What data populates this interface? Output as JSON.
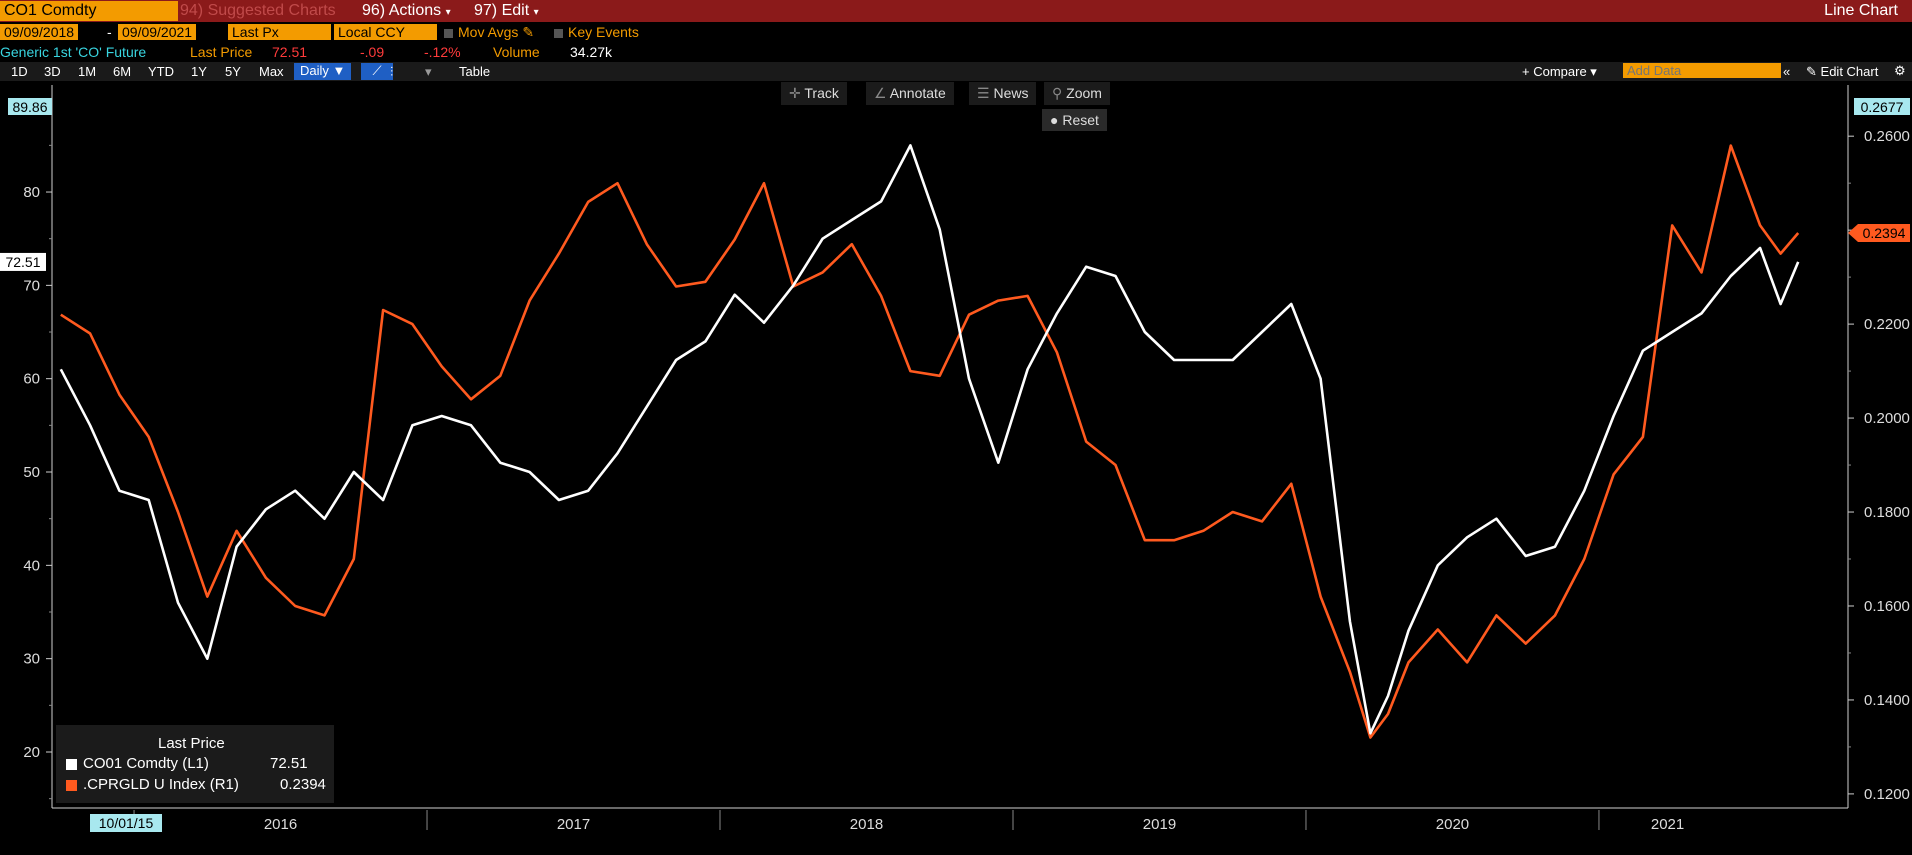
{
  "top_bar": {
    "ticker": "CO1 Comdty",
    "suggested": "94) Suggested Charts",
    "actions": "96) Actions",
    "edit": "97) Edit",
    "chart_type": "Line Chart"
  },
  "second_bar": {
    "start_date": "09/09/2018",
    "end_date": "09/09/2021",
    "field": "Last Px",
    "currency": "Local CCY",
    "mov_avgs": "Mov Avgs",
    "key_events": "Key Events"
  },
  "info_bar": {
    "security": "Generic 1st 'CO' Future",
    "last_price_label": "Last Price",
    "last_price": "72.51",
    "change": "-.09",
    "pct_change": "-.12%",
    "volume_label": "Volume",
    "volume": "34.27k"
  },
  "range_bar": {
    "buttons": [
      "1D",
      "3D",
      "1M",
      "6M",
      "YTD",
      "1Y",
      "5Y",
      "Max"
    ],
    "frequency": "Daily",
    "table": "Table",
    "compare": "+ Compare",
    "add_data_placeholder": "Add Data",
    "edit_chart": "Edit Chart"
  },
  "chart_tools": {
    "track": "Track",
    "annotate": "Annotate",
    "news": "News",
    "zoom": "Zoom",
    "reset": "Reset"
  },
  "colors": {
    "series1": "#ffffff",
    "series2": "#ff5a1f",
    "accent": "#f39b00",
    "topbar": "#8b1a1a"
  },
  "chart_data": {
    "type": "line",
    "x_labels": [
      "10/01/15",
      "2016",
      "2017",
      "2018",
      "2019",
      "2020",
      "2021"
    ],
    "left_axis": {
      "ticks": [
        "20",
        "30",
        "40",
        "50",
        "60",
        "70",
        "80"
      ],
      "ylim": [
        14,
        89.86
      ],
      "top_label": "89.86",
      "last_label": "72.51"
    },
    "right_axis": {
      "ticks": [
        "0.1200",
        "0.1400",
        "0.1600",
        "0.1800",
        "0.2000",
        "0.2200",
        "0.2400",
        "0.2600"
      ],
      "ylim": [
        0.117,
        0.2677
      ],
      "top_label": "0.2677",
      "last_label": "0.2394"
    },
    "legend_title": "Last Price",
    "series": [
      {
        "name": "CO01 Comdty (L1)",
        "legend_value": "72.51",
        "axis": "left",
        "x": [
          2015.75,
          2015.85,
          2015.95,
          2016.05,
          2016.15,
          2016.25,
          2016.35,
          2016.45,
          2016.55,
          2016.65,
          2016.75,
          2016.85,
          2016.95,
          2017.05,
          2017.15,
          2017.25,
          2017.35,
          2017.45,
          2017.55,
          2017.65,
          2017.75,
          2017.85,
          2017.95,
          2018.05,
          2018.15,
          2018.25,
          2018.35,
          2018.45,
          2018.55,
          2018.65,
          2018.75,
          2018.85,
          2018.95,
          2019.05,
          2019.15,
          2019.25,
          2019.35,
          2019.45,
          2019.55,
          2019.65,
          2019.75,
          2019.85,
          2019.95,
          2020.05,
          2020.15,
          2020.22,
          2020.28,
          2020.35,
          2020.45,
          2020.55,
          2020.65,
          2020.75,
          2020.85,
          2020.95,
          2021.05,
          2021.15,
          2021.25,
          2021.35,
          2021.45,
          2021.55,
          2021.62,
          2021.68
        ],
        "y": [
          61,
          55,
          48,
          47,
          36,
          30,
          42,
          46,
          48,
          45,
          50,
          47,
          55,
          56,
          55,
          51,
          50,
          47,
          48,
          52,
          57,
          62,
          64,
          69,
          66,
          70,
          75,
          77,
          79,
          85,
          76,
          60,
          51,
          61,
          67,
          72,
          71,
          65,
          62,
          62,
          62,
          65,
          68,
          60,
          34,
          22,
          26,
          33,
          40,
          43,
          45,
          41,
          42,
          48,
          56,
          63,
          65,
          67,
          71,
          74,
          68,
          72.51
        ]
      },
      {
        "name": ".CPRGLD U Index (R1)",
        "legend_value": "0.2394",
        "axis": "right",
        "x": [
          2015.75,
          2015.85,
          2015.95,
          2016.05,
          2016.15,
          2016.25,
          2016.35,
          2016.45,
          2016.55,
          2016.65,
          2016.75,
          2016.85,
          2016.95,
          2017.05,
          2017.15,
          2017.25,
          2017.35,
          2017.45,
          2017.55,
          2017.65,
          2017.75,
          2017.85,
          2017.95,
          2018.05,
          2018.15,
          2018.25,
          2018.35,
          2018.45,
          2018.55,
          2018.65,
          2018.75,
          2018.85,
          2018.95,
          2019.05,
          2019.15,
          2019.25,
          2019.35,
          2019.45,
          2019.55,
          2019.65,
          2019.75,
          2019.85,
          2019.95,
          2020.05,
          2020.15,
          2020.22,
          2020.28,
          2020.35,
          2020.45,
          2020.55,
          2020.65,
          2020.75,
          2020.85,
          2020.95,
          2021.05,
          2021.15,
          2021.25,
          2021.35,
          2021.45,
          2021.55,
          2021.62,
          2021.68
        ],
        "y": [
          0.222,
          0.218,
          0.205,
          0.196,
          0.18,
          0.162,
          0.176,
          0.166,
          0.16,
          0.158,
          0.17,
          0.223,
          0.22,
          0.211,
          0.204,
          0.209,
          0.225,
          0.235,
          0.246,
          0.25,
          0.237,
          0.228,
          0.229,
          0.238,
          0.25,
          0.228,
          0.231,
          0.237,
          0.226,
          0.21,
          0.209,
          0.222,
          0.225,
          0.226,
          0.214,
          0.195,
          0.19,
          0.174,
          0.174,
          0.176,
          0.18,
          0.178,
          0.186,
          0.162,
          0.146,
          0.132,
          0.137,
          0.148,
          0.155,
          0.148,
          0.158,
          0.152,
          0.158,
          0.17,
          0.188,
          0.196,
          0.241,
          0.231,
          0.258,
          0.241,
          0.235,
          0.2394
        ]
      }
    ]
  }
}
